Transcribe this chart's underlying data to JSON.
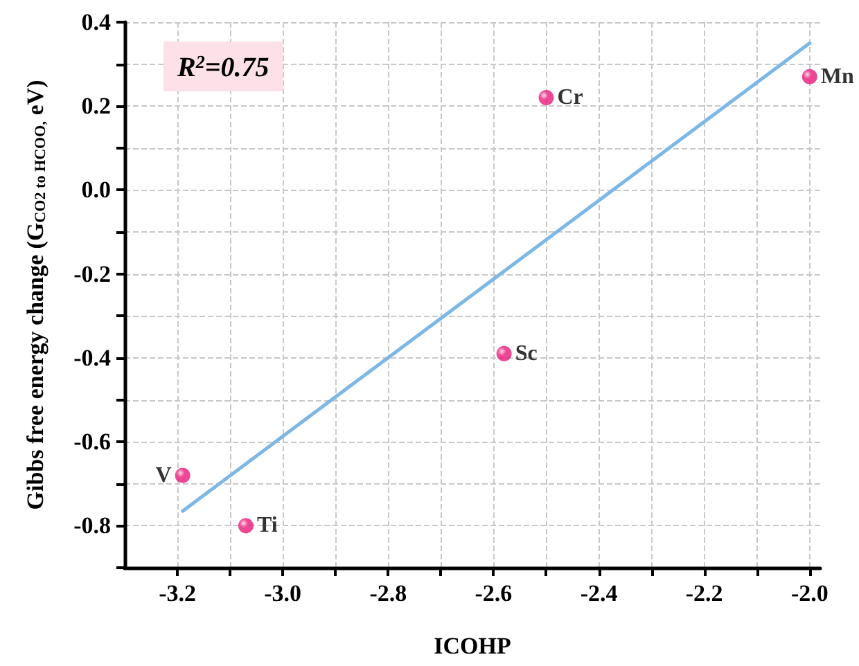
{
  "chart_data": {
    "type": "scatter",
    "xlabel": "ICOHP",
    "ylabel": "Gibbs free energy change (G$_{CO2 to HCOO,}$ eV)",
    "xlim": [
      -3.3,
      -1.98
    ],
    "ylim": [
      -0.9,
      0.4
    ],
    "xticks": [
      -3.2,
      {
        "value": -3.1,
        "label": null
      },
      {
        "value": -3.0,
        "label": "-3.0"
      },
      {
        "value": -2.9,
        "label": null
      },
      -2.8,
      {
        "value": -2.7,
        "label": null
      },
      -2.6,
      {
        "value": -2.5,
        "label": null
      },
      -2.4,
      {
        "value": -2.3,
        "label": null
      },
      -2.2,
      {
        "value": -2.1,
        "label": null
      },
      {
        "value": -2.0,
        "label": "-2.0"
      }
    ],
    "yticks": [
      {
        "value": -0.9,
        "label": null
      },
      -0.8,
      {
        "value": -0.7,
        "label": null
      },
      -0.6,
      {
        "value": -0.5,
        "label": null
      },
      -0.4,
      {
        "value": -0.3,
        "label": null
      },
      -0.2,
      {
        "value": -0.1,
        "label": null
      },
      {
        "value": 0.0,
        "label": "0.0"
      },
      {
        "value": 0.1,
        "label": null
      },
      0.2,
      {
        "value": 0.3,
        "label": null
      },
      0.4
    ],
    "grid": true,
    "marker": "circle",
    "series": [
      {
        "color": "#e8197a",
        "x": [
          -3.19,
          -3.07,
          -2.58,
          -2.5,
          -2.0
        ],
        "values": [
          -0.68,
          -0.8,
          -0.39,
          0.22,
          0.27
        ]
      },
      {
        "type": "line",
        "color": "#7db7e6",
        "marker": "none",
        "line_style": "solid",
        "x": [
          -3.19,
          -2.0
        ],
        "values": [
          -0.765,
          0.35
        ]
      }
    ],
    "annotations": [
      {
        "text": "V",
        "x": -3.19,
        "y": -0.68
      },
      {
        "text": "Ti",
        "x": -3.07,
        "y": -0.8
      },
      {
        "text": "Sc",
        "x": -2.58,
        "y": -0.39
      },
      {
        "text": "Cr",
        "x": -2.5,
        "y": 0.22
      },
      {
        "text": "Mn",
        "x": -2.0,
        "y": 0.27
      },
      "R$^{2}$=0.75"
    ]
  }
}
